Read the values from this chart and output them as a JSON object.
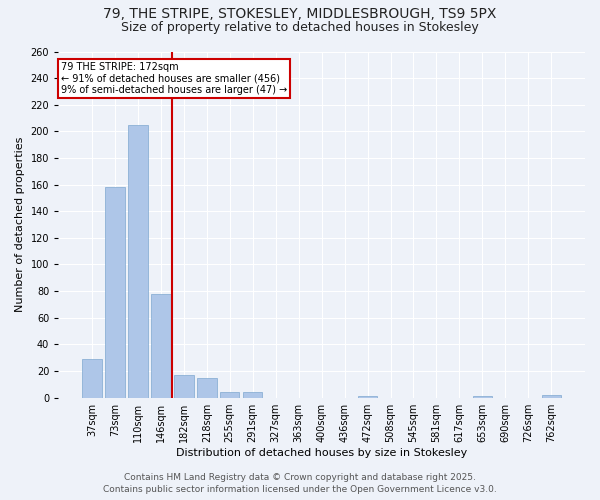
{
  "title_line1": "79, THE STRIPE, STOKESLEY, MIDDLESBROUGH, TS9 5PX",
  "title_line2": "Size of property relative to detached houses in Stokesley",
  "xlabel": "Distribution of detached houses by size in Stokesley",
  "ylabel": "Number of detached properties",
  "categories": [
    "37sqm",
    "73sqm",
    "110sqm",
    "146sqm",
    "182sqm",
    "218sqm",
    "255sqm",
    "291sqm",
    "327sqm",
    "363sqm",
    "400sqm",
    "436sqm",
    "472sqm",
    "508sqm",
    "545sqm",
    "581sqm",
    "617sqm",
    "653sqm",
    "690sqm",
    "726sqm",
    "762sqm"
  ],
  "values": [
    29,
    158,
    205,
    78,
    17,
    15,
    4,
    4,
    0,
    0,
    0,
    0,
    1,
    0,
    0,
    0,
    0,
    1,
    0,
    0,
    2
  ],
  "bar_color": "#aec6e8",
  "bar_edge_color": "#7fa8d0",
  "annotation_text_line1": "79 THE STRIPE: 172sqm",
  "annotation_text_line2": "← 91% of detached houses are smaller (456)",
  "annotation_text_line3": "9% of semi-detached houses are larger (47) →",
  "annotation_box_color": "#ffffff",
  "annotation_box_edge": "#cc0000",
  "vline_color": "#cc0000",
  "vline_x": 3.5,
  "ylim": [
    0,
    260
  ],
  "yticks": [
    0,
    20,
    40,
    60,
    80,
    100,
    120,
    140,
    160,
    180,
    200,
    220,
    240,
    260
  ],
  "footer_line1": "Contains HM Land Registry data © Crown copyright and database right 2025.",
  "footer_line2": "Contains public sector information licensed under the Open Government Licence v3.0.",
  "background_color": "#eef2f9",
  "plot_bg_color": "#eef2f9",
  "grid_color": "#ffffff",
  "title_fontsize": 10,
  "subtitle_fontsize": 9,
  "axis_label_fontsize": 8,
  "tick_fontsize": 7,
  "footer_fontsize": 6.5
}
